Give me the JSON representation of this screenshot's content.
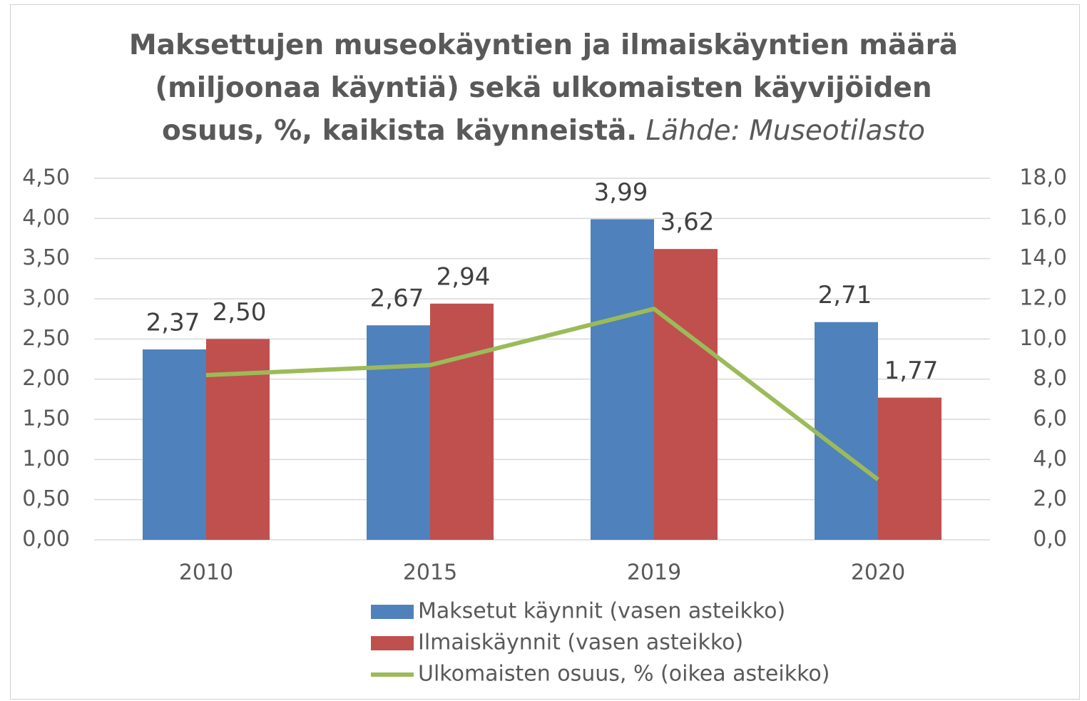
{
  "chart_data": {
    "type": "bar",
    "title": "Maksettujen museokäyntien ja ilmaiskäyntien määrä (miljoonaa käyntiä) sekä ulkomaisten käyvijöiden osuus, %,  kaikista käynneistä.",
    "source": "Lähde: Museotilasto",
    "categories": [
      "2010",
      "2015",
      "2019",
      "2020"
    ],
    "series": [
      {
        "name": "Maksetut käynnit (vasen asteikko)",
        "type": "bar",
        "color": "#4f81bd",
        "values": [
          2.37,
          2.67,
          3.99,
          2.71
        ],
        "value_labels": [
          "2,37",
          "2,67",
          "3,99",
          "2,71"
        ]
      },
      {
        "name": "Ilmaiskäynnit (vasen asteikko)",
        "type": "bar",
        "color": "#c0504d",
        "values": [
          2.5,
          2.94,
          3.62,
          1.77
        ],
        "value_labels": [
          "2,50",
          "2,94",
          "3,62",
          "1,77"
        ]
      },
      {
        "name": "Ulkomaisten osuus, % (oikea asteikko)",
        "type": "line",
        "axis": "y2",
        "color": "#9bbb59",
        "values": [
          8.2,
          8.7,
          11.5,
          3.0
        ]
      }
    ],
    "ylim": [
      0,
      4.5
    ],
    "yticks": [
      {
        "value": 0,
        "label": "0,00"
      },
      {
        "value": 0.5,
        "label": "0,50"
      },
      {
        "value": 1,
        "label": "1,00"
      },
      {
        "value": 1.5,
        "label": "1,50"
      },
      {
        "value": 2,
        "label": "2,00"
      },
      {
        "value": 2.5,
        "label": "2,50"
      },
      {
        "value": 3,
        "label": "3,00"
      },
      {
        "value": 3.5,
        "label": "3,50"
      },
      {
        "value": 4,
        "label": "4,00"
      },
      {
        "value": 4.5,
        "label": "4,50"
      }
    ],
    "y2lim": [
      0,
      18
    ],
    "y2ticks": [
      {
        "value": 0,
        "label": "0,0"
      },
      {
        "value": 2,
        "label": "2,0"
      },
      {
        "value": 4,
        "label": "4,0"
      },
      {
        "value": 6,
        "label": "6,0"
      },
      {
        "value": 8,
        "label": "8,0"
      },
      {
        "value": 10,
        "label": "10,0"
      },
      {
        "value": 12,
        "label": "12,0"
      },
      {
        "value": 14,
        "label": "14,0"
      },
      {
        "value": 16,
        "label": "16,0"
      },
      {
        "value": 18,
        "label": "18,0"
      }
    ],
    "grid": true,
    "legend": "bottom"
  }
}
